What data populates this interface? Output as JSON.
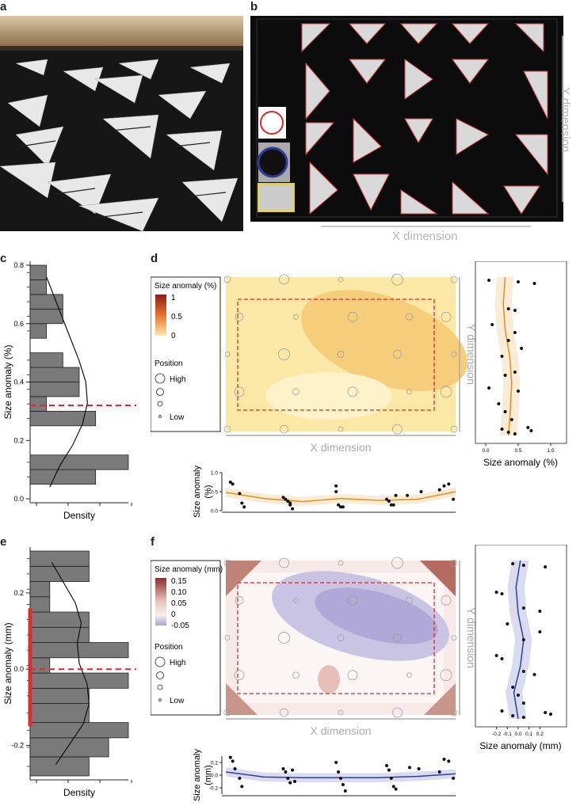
{
  "panels": {
    "a": "a",
    "b": "b",
    "c": "c",
    "d": "d",
    "e": "e",
    "f": "f"
  },
  "photo_b": {
    "y_dimension": "Y dimension",
    "x_dimension": "X dimension"
  },
  "colors": {
    "bar_fill": "#7a7a7a",
    "red_dash": "#e0262b",
    "orange_line": "#e3901a",
    "blue_line": "#2f3fa8",
    "red_bar": "#d83030"
  },
  "chart_data": [
    {
      "id": "c",
      "type": "bar",
      "orientation": "horizontal-histogram",
      "ylabel": "Size anomaly (%)",
      "xlabel": "Density",
      "ylim": [
        0,
        0.8
      ],
      "yticks": [
        "0.0",
        "0.2",
        "0.4",
        "0.6",
        "0.8"
      ],
      "bins": [
        {
          "y0": 0.05,
          "y1": 0.1,
          "density": 4
        },
        {
          "y0": 0.1,
          "y1": 0.15,
          "density": 6
        },
        {
          "y0": 0.15,
          "y1": 0.2,
          "density": 0
        },
        {
          "y0": 0.2,
          "y1": 0.25,
          "density": 0
        },
        {
          "y0": 0.25,
          "y1": 0.3,
          "density": 4
        },
        {
          "y0": 0.3,
          "y1": 0.35,
          "density": 1
        },
        {
          "y0": 0.35,
          "y1": 0.4,
          "density": 3
        },
        {
          "y0": 0.4,
          "y1": 0.45,
          "density": 3
        },
        {
          "y0": 0.45,
          "y1": 0.5,
          "density": 2
        },
        {
          "y0": 0.55,
          "y1": 0.6,
          "density": 1
        },
        {
          "y0": 0.6,
          "y1": 0.65,
          "density": 2
        },
        {
          "y0": 0.65,
          "y1": 0.7,
          "density": 2
        },
        {
          "y0": 0.7,
          "y1": 0.75,
          "density": 1
        },
        {
          "y0": 0.75,
          "y1": 0.8,
          "density": 1
        }
      ],
      "dashed_line_y": 0.32
    },
    {
      "id": "d",
      "type": "heatmap",
      "legend_title": "Size anomaly (%)",
      "legend_ticks": [
        "1",
        "0.5",
        "0"
      ],
      "position_title": "Position",
      "position_high": "High",
      "position_low": "Low",
      "x_label": "X dimension",
      "y_label": "Y dimension",
      "bottom": {
        "ylabel": "Size anomaly (%)",
        "yticks": [
          "0.0",
          "0.5",
          "1.0"
        ],
        "ylim": [
          0,
          1
        ],
        "x": [
          0.02,
          0.03,
          0.06,
          0.07,
          0.08,
          0.25,
          0.26,
          0.27,
          0.28,
          0.28,
          0.29,
          0.48,
          0.48,
          0.49,
          0.5,
          0.51,
          0.7,
          0.71,
          0.72,
          0.73,
          0.74,
          0.79,
          0.85,
          0.93,
          0.95,
          0.97,
          0.99
        ],
        "y": [
          0.75,
          0.7,
          0.45,
          0.2,
          0.1,
          0.35,
          0.3,
          0.25,
          0.2,
          0.15,
          0.05,
          0.65,
          0.5,
          0.15,
          0.1,
          0.1,
          0.3,
          0.25,
          0.15,
          0.15,
          0.4,
          0.4,
          0.5,
          0.55,
          0.65,
          0.7,
          0.3
        ],
        "fit": [
          0.48,
          0.32,
          0.24,
          0.32,
          0.27,
          0.3,
          0.5
        ]
      },
      "right": {
        "xlabel": "Size anomaly (%)",
        "xticks": [
          "0.0",
          "0.5",
          "1.0"
        ],
        "xlim": [
          0,
          1
        ],
        "y": [
          0.98,
          0.97,
          0.96,
          0.8,
          0.79,
          0.7,
          0.65,
          0.6,
          0.55,
          0.5,
          0.4,
          0.38,
          0.3,
          0.28,
          0.2,
          0.15,
          0.1,
          0.05,
          0.04,
          0.03,
          0.02,
          0.01
        ],
        "x": [
          0.05,
          0.5,
          0.75,
          0.35,
          0.45,
          0.1,
          0.45,
          0.35,
          0.55,
          0.25,
          0.45,
          0.3,
          0.05,
          0.5,
          0.2,
          0.3,
          0.4,
          0.65,
          0.25,
          0.7,
          0.35,
          0.45
        ],
        "fit": [
          0.3,
          0.27,
          0.3,
          0.37,
          0.4,
          0.38,
          0.35
        ]
      }
    },
    {
      "id": "e",
      "type": "bar",
      "orientation": "horizontal-histogram",
      "ylabel": "Size anomaly (mm)",
      "xlabel": "Density",
      "ylim": [
        -0.28,
        0.31
      ],
      "yticks": [
        "0.2",
        "0.0",
        "-0.2"
      ],
      "bins": [
        {
          "y0": -0.28,
          "y1": -0.23,
          "density": 3
        },
        {
          "y0": -0.23,
          "y1": -0.18,
          "density": 4
        },
        {
          "y0": -0.18,
          "y1": -0.14,
          "density": 5
        },
        {
          "y0": -0.14,
          "y1": -0.09,
          "density": 3
        },
        {
          "y0": -0.09,
          "y1": -0.05,
          "density": 3
        },
        {
          "y0": -0.05,
          "y1": -0.01,
          "density": 5
        },
        {
          "y0": -0.01,
          "y1": 0.03,
          "density": 1
        },
        {
          "y0": 0.03,
          "y1": 0.07,
          "density": 5
        },
        {
          "y0": 0.07,
          "y1": 0.11,
          "density": 3
        },
        {
          "y0": 0.11,
          "y1": 0.15,
          "density": 3
        },
        {
          "y0": 0.15,
          "y1": 0.19,
          "density": 1
        },
        {
          "y0": 0.19,
          "y1": 0.23,
          "density": 1
        },
        {
          "y0": 0.23,
          "y1": 0.27,
          "density": 3
        },
        {
          "y0": 0.27,
          "y1": 0.31,
          "density": 3
        }
      ],
      "dashed_line_y": 0.0,
      "red_bar_range": [
        -0.15,
        0.16
      ]
    },
    {
      "id": "f",
      "type": "heatmap",
      "legend_title": "Size anomaly (mm)",
      "legend_ticks": [
        "0.15",
        "0.10",
        "0.05",
        "0",
        "-0.05"
      ],
      "position_title": "Position",
      "position_high": "High",
      "position_low": "Low",
      "x_label": "X dimension",
      "y_label": "Y dimension",
      "bottom": {
        "ylabel": "Size anomaly (mm)",
        "yticks": [
          "0.2",
          "0.0",
          "-0.2"
        ],
        "ylim": [
          -0.3,
          0.3
        ],
        "x": [
          0.02,
          0.03,
          0.04,
          0.06,
          0.07,
          0.25,
          0.26,
          0.27,
          0.28,
          0.29,
          0.3,
          0.48,
          0.49,
          0.5,
          0.51,
          0.52,
          0.7,
          0.71,
          0.72,
          0.73,
          0.74,
          0.8,
          0.84,
          0.93,
          0.95,
          0.97,
          0.99
        ],
        "y": [
          0.28,
          0.22,
          0.1,
          -0.05,
          -0.18,
          0.1,
          0.05,
          -0.05,
          -0.12,
          0.08,
          -0.1,
          0.2,
          0.05,
          -0.05,
          -0.15,
          -0.25,
          0.15,
          0.08,
          -0.05,
          -0.18,
          -0.22,
          0.12,
          0.1,
          0.05,
          0.25,
          0.22,
          -0.05
        ],
        "fit": [
          0.05,
          -0.03,
          -0.04,
          -0.04,
          -0.04,
          -0.02,
          0.02
        ]
      },
      "right": {
        "xlabel": "Size anomaly (mm)",
        "xticks": [
          "-0.2",
          "-0.1",
          "0.0",
          "0.1",
          "0.2"
        ],
        "xlim": [
          -0.3,
          0.3
        ],
        "y": [
          0.98,
          0.97,
          0.96,
          0.8,
          0.79,
          0.7,
          0.68,
          0.6,
          0.55,
          0.5,
          0.4,
          0.38,
          0.3,
          0.28,
          0.2,
          0.15,
          0.1,
          0.05,
          0.04,
          0.03,
          0.02,
          0.01
        ],
        "x": [
          -0.05,
          0.05,
          0.25,
          -0.2,
          -0.15,
          0.05,
          0.2,
          -0.1,
          0.2,
          0.05,
          -0.2,
          -0.15,
          0.05,
          0.15,
          -0.05,
          0.0,
          0.05,
          -0.15,
          0.25,
          0.3,
          -0.05,
          0.05
        ],
        "fit": [
          0.02,
          -0.02,
          0.0,
          0.05,
          0.02,
          -0.04,
          0.0
        ]
      }
    }
  ]
}
